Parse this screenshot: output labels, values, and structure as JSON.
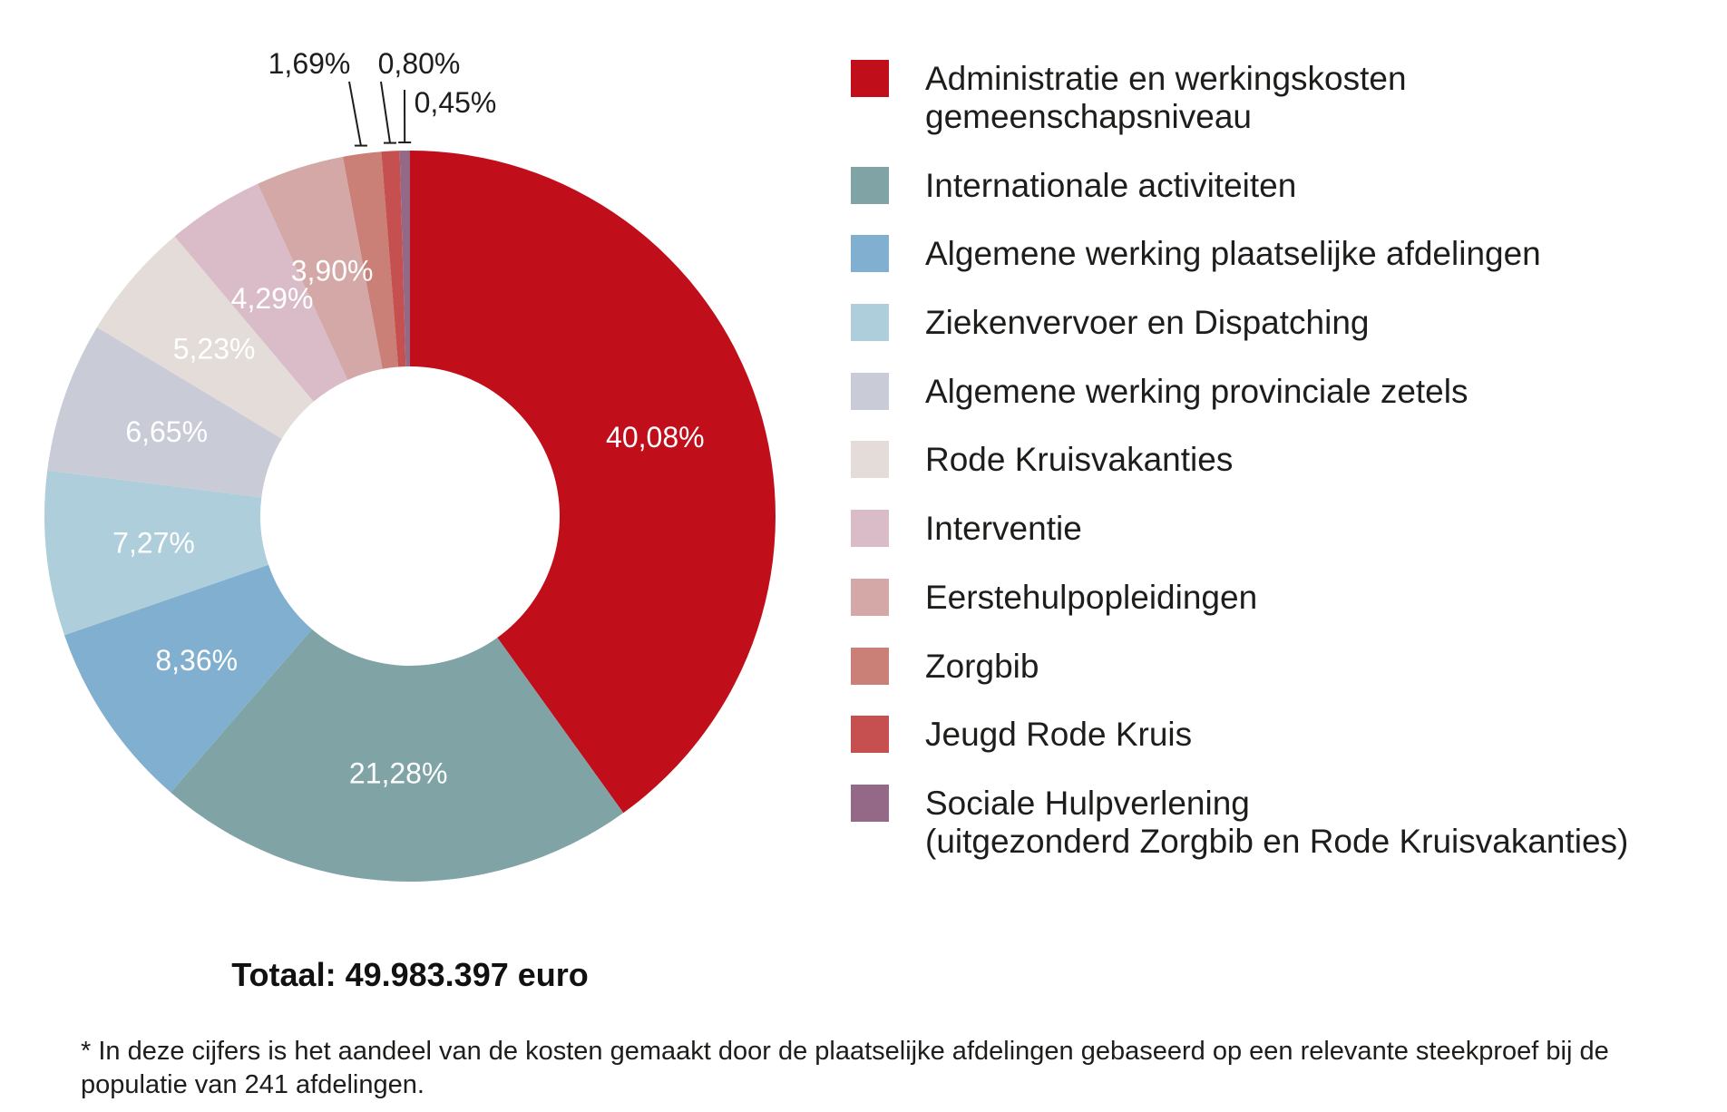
{
  "chart_data": {
    "type": "pie",
    "variant": "donut",
    "categories": [
      "Administratie en werkingskosten\ngemeenschapsniveau",
      "Internationale activiteiten",
      "Algemene werking plaatselijke afdelingen",
      "Ziekenvervoer en Dispatching",
      "Algemene werking provinciale zetels",
      "Rode Kruisvakanties",
      "Interventie",
      "Eerstehulpopleidingen",
      "Zorgbib",
      "Jeugd Rode Kruis",
      "Sociale Hulpverlening\n(uitgezonderd Zorgbib en Rode Kruisvakanties)"
    ],
    "values": [
      40.08,
      21.28,
      8.36,
      7.27,
      6.65,
      5.23,
      4.29,
      3.9,
      1.69,
      0.8,
      0.45
    ],
    "value_labels": [
      "40,08%",
      "21,28%",
      "8,36%",
      "7,27%",
      "6,65%",
      "5,23%",
      "4,29%",
      "3,90%",
      "1,69%",
      "0,80%",
      "0,45%"
    ],
    "colors": [
      "#C10E1B",
      "#80A4A6",
      "#80AFCF",
      "#AFCEDB",
      "#C9CCD7",
      "#E3DCD8",
      "#DABCC8",
      "#D4A8A6",
      "#CA7F77",
      "#C5504F",
      "#936987"
    ],
    "legend_position": "right",
    "total": "Totaal: 49.983.397 euro"
  },
  "footnote": {
    "lines": [
      "* In deze cijfers is het aandeel van de kosten gemaakt door de plaatselijke afdelingen gebaseerd op een relevante steekproef bij de",
      "populatie van 241 afdelingen."
    ]
  }
}
